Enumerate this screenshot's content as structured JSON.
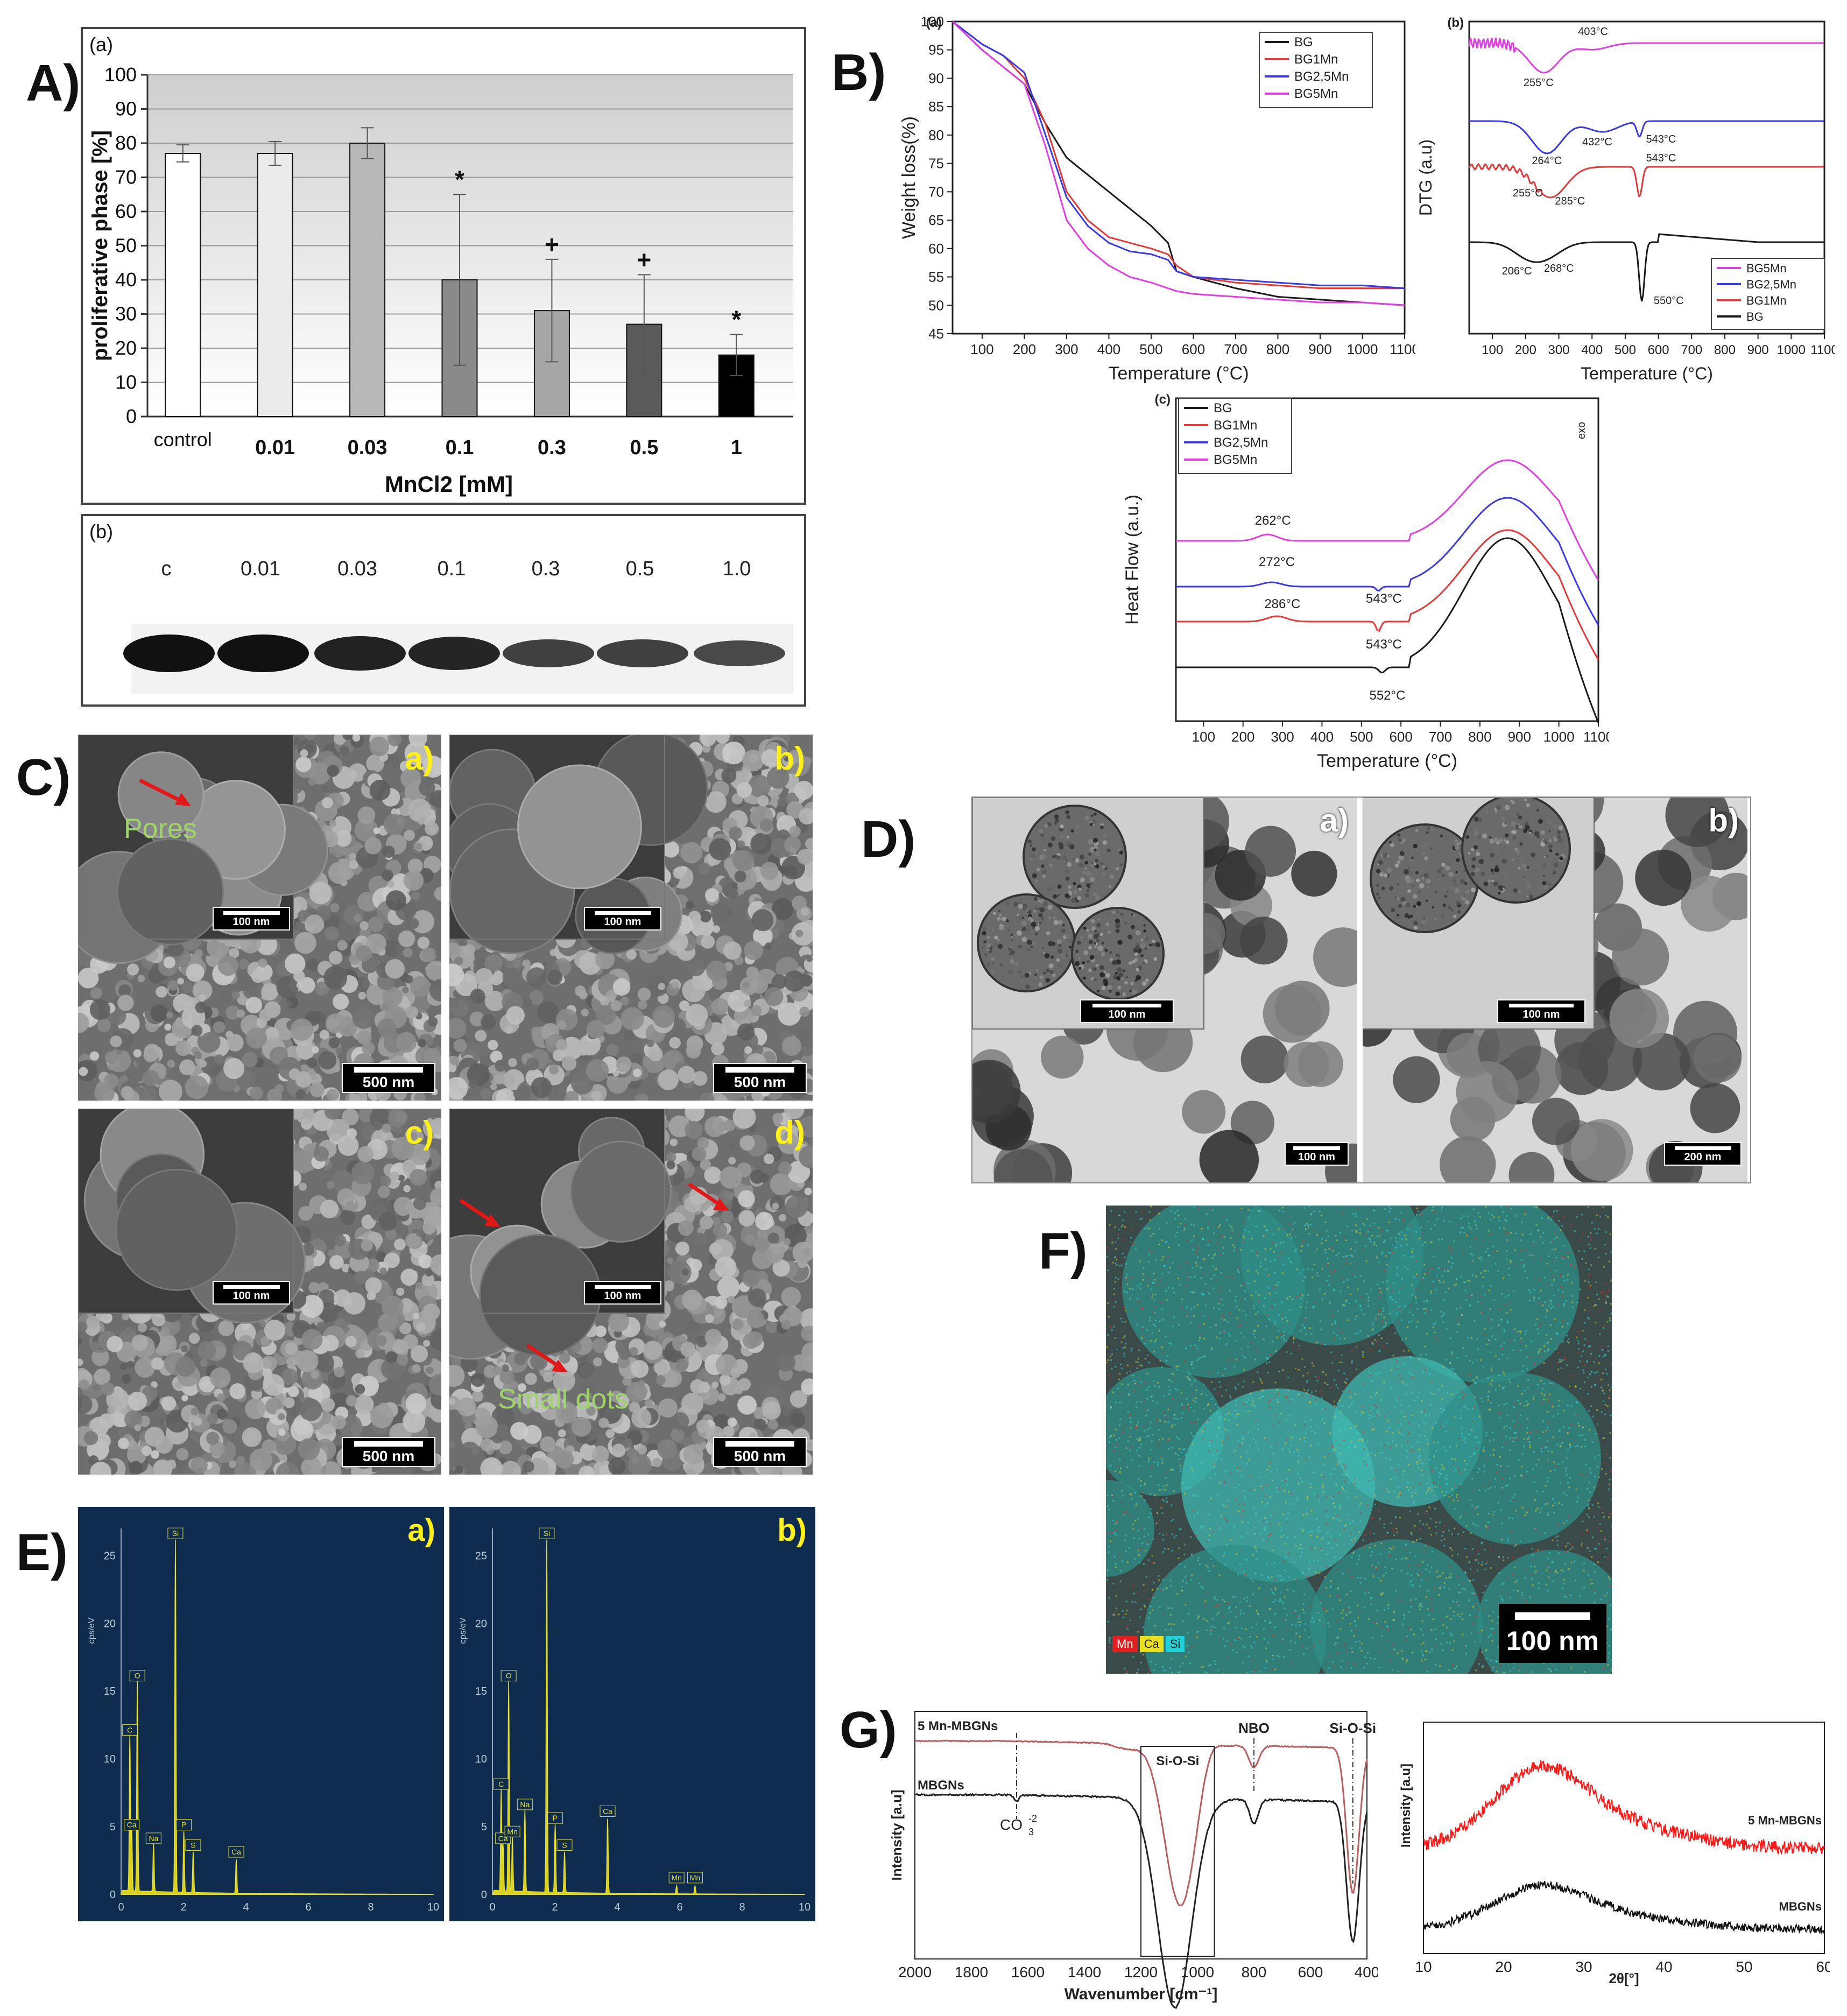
{
  "panels": {
    "A": {
      "label": "A)",
      "sub_a": "(a)",
      "sub_b": "(b)",
      "chart_data": {
        "type": "bar",
        "categories": [
          "control",
          "0.01",
          "0.03",
          "0.1",
          "0.3",
          "0.5",
          "1"
        ],
        "values": [
          77,
          77,
          80,
          40,
          31,
          27,
          18
        ],
        "errors": [
          2.5,
          3.5,
          4.5,
          25,
          15,
          14.5,
          6
        ],
        "markers": [
          "",
          "",
          "",
          "*",
          "+",
          "+",
          "*"
        ],
        "bar_colors": [
          "#ffffff",
          "#ebebeb",
          "#b8b8b8",
          "#8a8a8a",
          "#a6a6a6",
          "#5a5a5a",
          "#000000"
        ],
        "ylabel": "proliferative phase [%]",
        "xlabel": "MnCl2 [mM]",
        "ylim": [
          0,
          100
        ],
        "yticks": [
          "0",
          "10",
          "20",
          "30",
          "40",
          "50",
          "60",
          "70",
          "80",
          "90",
          "100"
        ]
      },
      "blot": {
        "lanes": [
          "c",
          "0.01",
          "0.03",
          "0.1",
          "0.3",
          "0.5",
          "1.0"
        ],
        "intensity": [
          1.0,
          1.0,
          0.85,
          0.8,
          0.55,
          0.55,
          0.45
        ]
      }
    },
    "B": {
      "label": "B)",
      "tga": {
        "chart_data": {
          "type": "line",
          "subpanel": "(a)",
          "xlabel": "Temperature (°C)",
          "ylabel": "Weight loss(%)",
          "xlim": [
            30,
            1100
          ],
          "ylim": [
            45,
            100
          ],
          "xticks": [
            "100",
            "200",
            "300",
            "400",
            "500",
            "600",
            "700",
            "800",
            "900",
            "1000",
            "1100"
          ],
          "yticks": [
            "45",
            "50",
            "55",
            "60",
            "65",
            "70",
            "75",
            "80",
            "85",
            "90",
            "95",
            "100"
          ],
          "legend": [
            "BG",
            "BG1Mn",
            "BG2,5Mn",
            "BG5Mn"
          ],
          "colors": [
            "#1a1a1a",
            "#e03a3a",
            "#3a3ae0",
            "#e040e0"
          ],
          "series": [
            {
              "name": "BG",
              "x": [
                30,
                100,
                150,
                200,
                250,
                300,
                350,
                400,
                450,
                500,
                540,
                560,
                600,
                700,
                800,
                900,
                1000,
                1100
              ],
              "y": [
                100,
                95,
                92,
                89,
                82,
                76,
                73,
                70,
                67,
                64,
                61,
                56,
                55,
                53,
                51.5,
                51,
                50.5,
                50
              ]
            },
            {
              "name": "BG1Mn",
              "x": [
                30,
                100,
                150,
                200,
                250,
                300,
                350,
                400,
                450,
                500,
                540,
                560,
                600,
                700,
                800,
                900,
                1000,
                1100
              ],
              "y": [
                100,
                96,
                94,
                90,
                82,
                70,
                65,
                62,
                61,
                60,
                59,
                57,
                55,
                54,
                53.5,
                53,
                53,
                53
              ]
            },
            {
              "name": "BG2,5Mn",
              "x": [
                30,
                100,
                150,
                200,
                250,
                300,
                350,
                400,
                450,
                500,
                540,
                560,
                600,
                700,
                800,
                900,
                1000,
                1100
              ],
              "y": [
                100,
                96,
                94,
                91,
                80,
                69,
                64,
                61,
                59.5,
                59,
                58,
                56,
                55,
                54.5,
                54,
                53.5,
                53.5,
                53
              ]
            },
            {
              "name": "BG5Mn",
              "x": [
                30,
                100,
                150,
                200,
                250,
                300,
                350,
                400,
                450,
                500,
                540,
                560,
                600,
                700,
                800,
                900,
                1000,
                1100
              ],
              "y": [
                100,
                95,
                92,
                89,
                78,
                65,
                60,
                57,
                55,
                54,
                53,
                52.5,
                52,
                51.5,
                51,
                50.5,
                50.5,
                50
              ]
            }
          ]
        }
      },
      "dtg": {
        "chart_data": {
          "type": "line",
          "subpanel": "(b)",
          "xlabel": "Temperature (°C)",
          "ylabel": "DTG (a.u)",
          "xlim": [
            30,
            1100
          ],
          "xticks": [
            "100",
            "200",
            "300",
            "400",
            "500",
            "600",
            "700",
            "800",
            "900",
            "1000",
            "1100"
          ],
          "legend": [
            "BG5Mn",
            "BG2,5Mn",
            "BG1Mn",
            "BG"
          ],
          "colors": [
            "#e040e0",
            "#3a3ae0",
            "#e03a3a",
            "#1a1a1a"
          ],
          "annotations": [
            {
              "series": "BG5Mn",
              "labels": [
                "255°C",
                "403°C"
              ]
            },
            {
              "series": "BG2,5Mn",
              "labels": [
                "264°C",
                "432°C",
                "543°C"
              ]
            },
            {
              "series": "BG1Mn",
              "labels": [
                "255°C",
                "285°C",
                "543°C"
              ]
            },
            {
              "series": "BG",
              "labels": [
                "206°C",
                "268°C",
                "550°C"
              ]
            }
          ]
        }
      },
      "dsc": {
        "chart_data": {
          "type": "line",
          "subpanel": "(c)",
          "xlabel": "Temperature (°C)",
          "ylabel": "Heat Flow (a.u.)",
          "exo_label": "exo",
          "xlim": [
            30,
            1100
          ],
          "xticks": [
            "100",
            "200",
            "300",
            "400",
            "500",
            "600",
            "700",
            "800",
            "900",
            "1000",
            "1100"
          ],
          "legend": [
            "BG",
            "BG1Mn",
            "BG2,5Mn",
            "BG5Mn"
          ],
          "colors": [
            "#1a1a1a",
            "#e03a3a",
            "#3a3ae0",
            "#e040e0"
          ],
          "annotations": [
            {
              "series": "BG5Mn",
              "labels": [
                "262°C"
              ]
            },
            {
              "series": "BG2,5Mn",
              "labels": [
                "272°C",
                "543°C"
              ]
            },
            {
              "series": "BG1Mn",
              "labels": [
                "286°C",
                "543°C"
              ]
            },
            {
              "series": "BG",
              "labels": [
                "552°C"
              ]
            }
          ]
        }
      }
    },
    "C": {
      "label": "C)",
      "tiles": [
        {
          "id": "a)",
          "inset_scale": "100 nm",
          "scale": "500 nm",
          "note": "Pores"
        },
        {
          "id": "b)",
          "inset_scale": "100 nm",
          "scale": "500 nm",
          "note": ""
        },
        {
          "id": "c)",
          "inset_scale": "100 nm",
          "scale": "500 nm",
          "note": ""
        },
        {
          "id": "d)",
          "inset_scale": "100 nm",
          "scale": "500 nm",
          "note": "Small dots"
        }
      ]
    },
    "D": {
      "label": "D)",
      "tiles": [
        {
          "id": "a)",
          "inset_scale": "100 nm",
          "scale": "100 nm"
        },
        {
          "id": "b)",
          "inset_scale": "100 nm",
          "scale": "200 nm"
        }
      ]
    },
    "E": {
      "label": "E)",
      "ylabel": "cps/eV",
      "xticks": [
        "0",
        "2",
        "4",
        "6",
        "8",
        "10"
      ],
      "yticks": [
        "0",
        "5",
        "10",
        "15",
        "20",
        "25"
      ],
      "spectra": [
        {
          "id": "a)",
          "peaks": [
            {
              "el": "C",
              "x": 0.28,
              "y": 11.5
            },
            {
              "el": "O",
              "x": 0.52,
              "y": 15.5
            },
            {
              "el": "Ca",
              "x": 0.34,
              "y": 4.5
            },
            {
              "el": "Na",
              "x": 1.04,
              "y": 3.5
            },
            {
              "el": "Si",
              "x": 1.74,
              "y": 26
            },
            {
              "el": "P",
              "x": 2.01,
              "y": 4.5
            },
            {
              "el": "S",
              "x": 2.31,
              "y": 3
            },
            {
              "el": "Ca",
              "x": 3.69,
              "y": 2.5
            }
          ]
        },
        {
          "id": "b)",
          "peaks": [
            {
              "el": "C",
              "x": 0.28,
              "y": 7.5
            },
            {
              "el": "O",
              "x": 0.52,
              "y": 15.5
            },
            {
              "el": "Ca",
              "x": 0.34,
              "y": 3.5
            },
            {
              "el": "Mn",
              "x": 0.64,
              "y": 4
            },
            {
              "el": "Na",
              "x": 1.04,
              "y": 6
            },
            {
              "el": "Si",
              "x": 1.74,
              "y": 26
            },
            {
              "el": "P",
              "x": 2.01,
              "y": 5
            },
            {
              "el": "S",
              "x": 2.31,
              "y": 3
            },
            {
              "el": "Ca",
              "x": 3.69,
              "y": 5.5
            },
            {
              "el": "Mn",
              "x": 5.9,
              "y": 0.6
            },
            {
              "el": "Mn",
              "x": 6.49,
              "y": 0.6
            }
          ]
        }
      ]
    },
    "F": {
      "label": "F)",
      "legend": [
        "Mn",
        "Ca",
        "Si"
      ],
      "legend_colors": [
        "#e02020",
        "#e8e020",
        "#20d0d8"
      ],
      "scale": "100 nm"
    },
    "G": {
      "label": "G)",
      "ftir": {
        "chart_data": {
          "type": "line",
          "xlabel": "Wavenumber [cm⁻¹]",
          "ylabel": "Intensity [a.u]",
          "xlim": [
            2000,
            400
          ],
          "xticks": [
            "2000",
            "1800",
            "1600",
            "1400",
            "1200",
            "1000",
            "800",
            "600",
            "400"
          ],
          "series_labels": [
            "5 Mn-MBGNs",
            "MBGNs"
          ],
          "annotations": [
            "CO",
            "3",
            "-2",
            "Si-O-Si",
            "NBO",
            "Si-O-Si"
          ]
        }
      },
      "xrd": {
        "chart_data": {
          "type": "line",
          "xlabel": "2θ[°]",
          "ylabel": "Intensity [a.u]",
          "xlim": [
            10,
            60
          ],
          "xticks": [
            "10",
            "20",
            "30",
            "40",
            "50",
            "60"
          ],
          "series_labels": [
            "5 Mn-MBGNs",
            "MBGNs"
          ],
          "colors": [
            "#ff1a1a",
            "#111111"
          ]
        }
      }
    }
  }
}
